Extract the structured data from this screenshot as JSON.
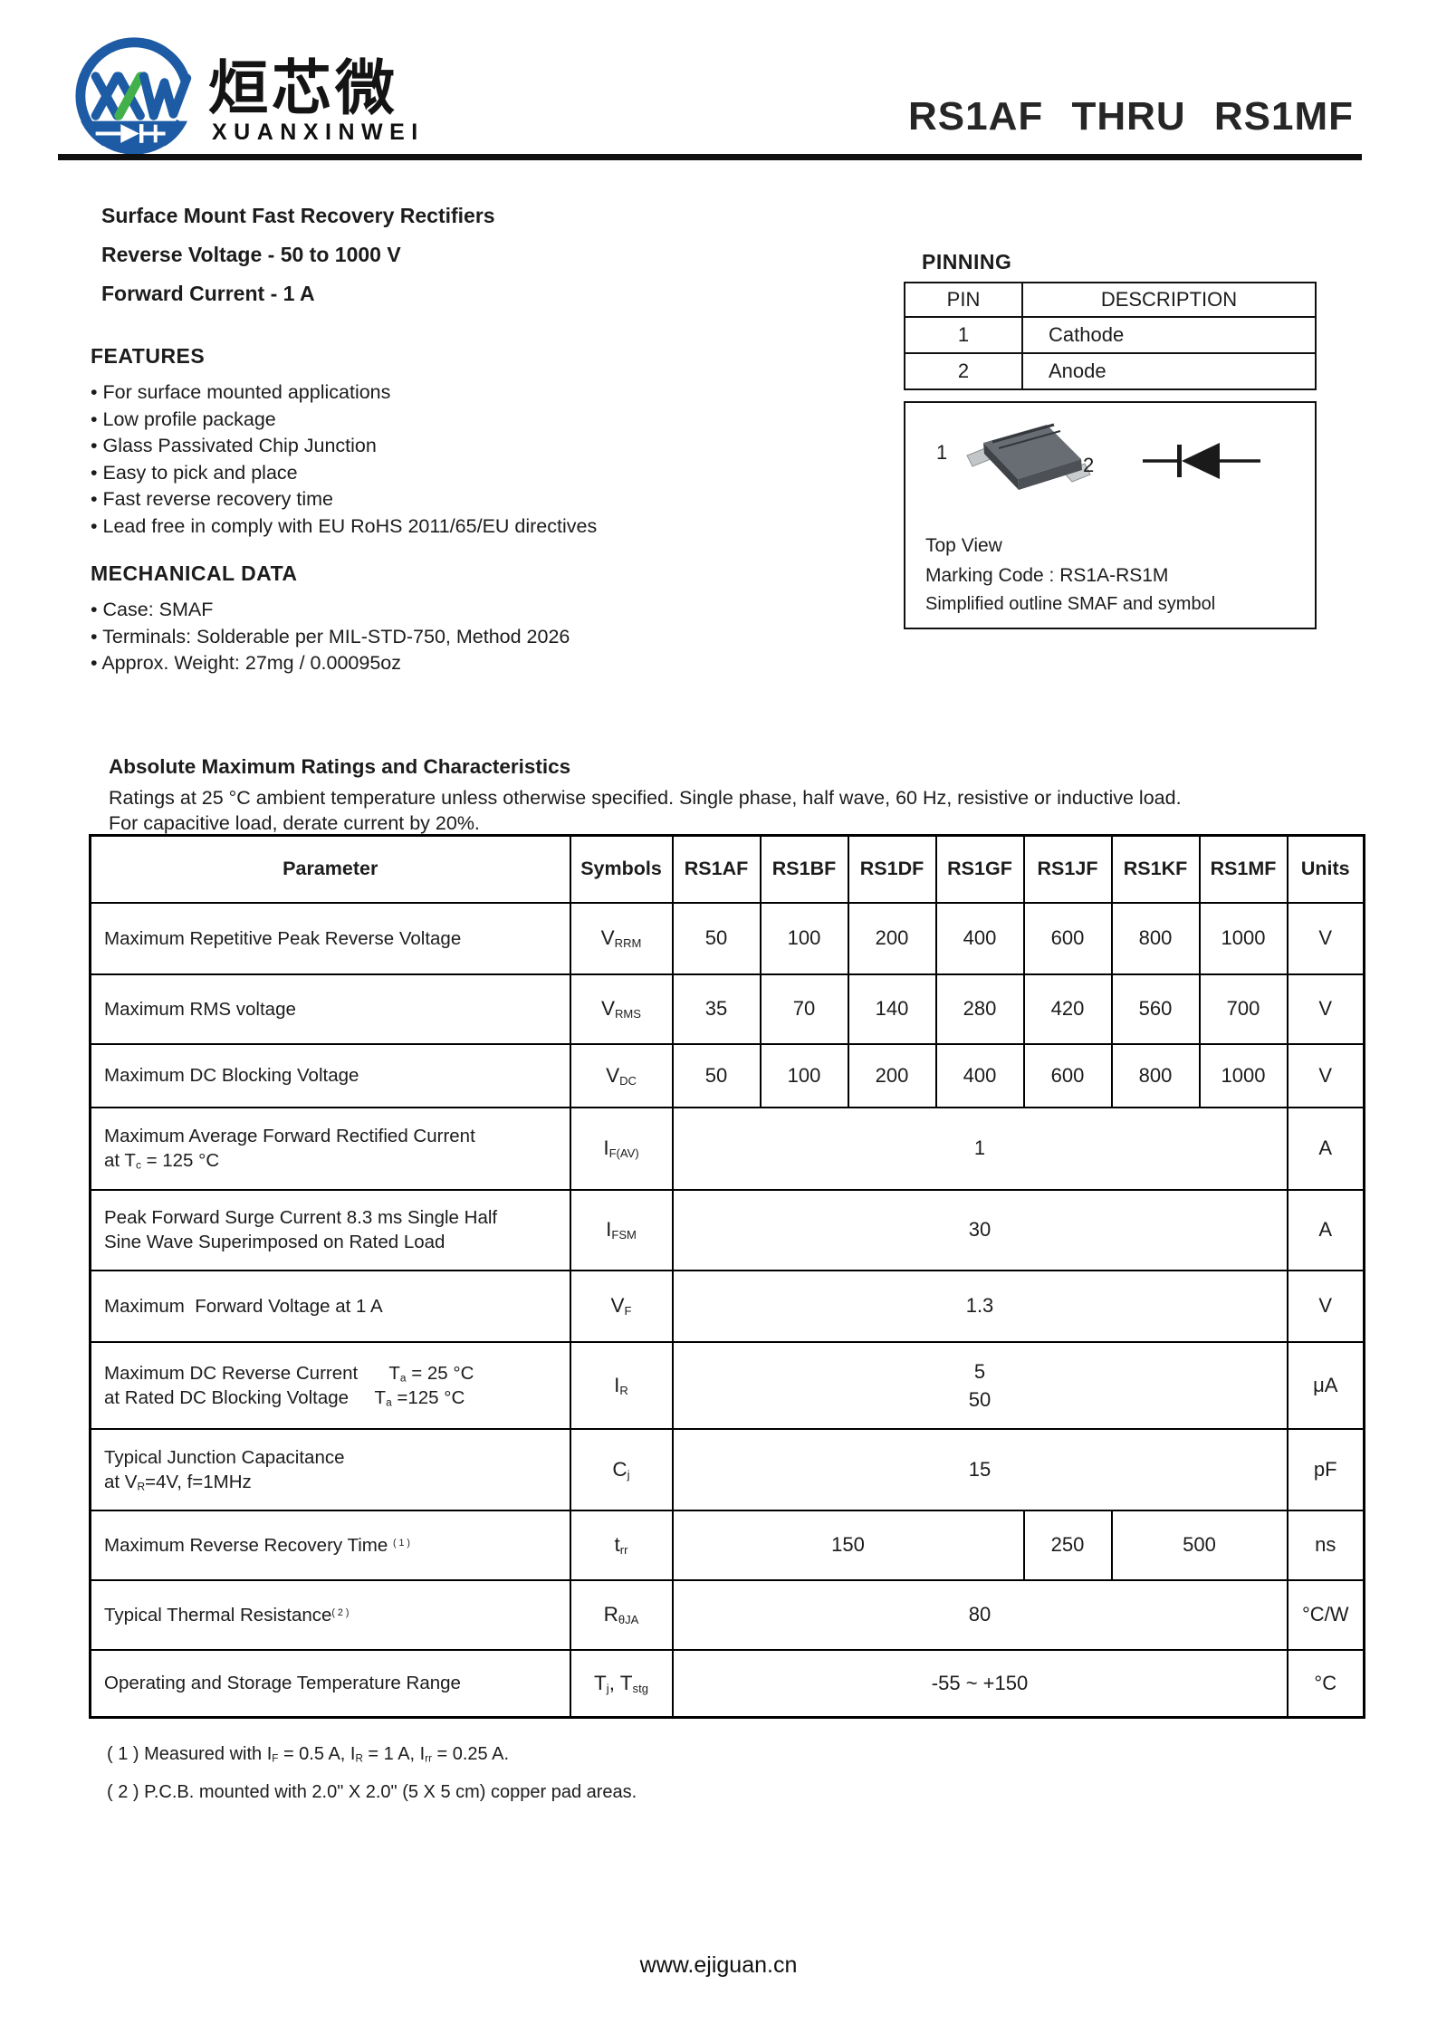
{
  "page": {
    "title": "RS1AF THRU RS1MF",
    "footer": "www.ejiguan.cn"
  },
  "logo": {
    "company_cn": "烜芯微",
    "company_en": "XUANXINWEI",
    "blue": "#1d5ba5",
    "green": "#43b14b"
  },
  "summary": {
    "line1": "Surface Mount Fast Recovery Rectifiers",
    "line2": "Reverse Voltage - 50 to 1000 V",
    "line3": "Forward Current - 1 A"
  },
  "features": {
    "heading": "FEATURES",
    "items": [
      "• For surface mounted applications",
      "• Low profile package",
      "• Glass Passivated Chip Junction",
      "• Easy to pick and place",
      "• Fast reverse recovery time",
      "• Lead free in comply with EU RoHS 2011/65/EU directives"
    ]
  },
  "mechanical": {
    "heading": "MECHANICAL DATA",
    "items": [
      "• Case: SMAF",
      "• Terminals: Solderable per MIL-STD-750, Method 2026",
      "• Approx. Weight:  27mg / 0.00095oz"
    ]
  },
  "pinning": {
    "heading": "PINNING",
    "headers": [
      "PIN",
      "DESCRIPTION"
    ],
    "rows": [
      [
        "1",
        "Cathode"
      ],
      [
        "2",
        "Anode"
      ]
    ]
  },
  "package_box": {
    "pin1": "1",
    "pin2": "2",
    "line1": "Top View",
    "line2": "Marking Code :  RS1A-RS1M",
    "line3": "Simplified outline SMAF and symbol"
  },
  "ratings": {
    "heading": "Absolute Maximum Ratings and Characteristics",
    "intro1": "Ratings at 25 °C ambient temperature unless otherwise specified. Single phase, half wave, 60 Hz, resistive or inductive load.",
    "intro2": "For capacitive load, derate current by 20%."
  },
  "table": {
    "headers": [
      "Parameter",
      "Symbols",
      "RS1AF",
      "RS1BF",
      "RS1DF",
      "RS1GF",
      "RS1JF",
      "RS1KF",
      "RS1MF",
      "Units"
    ],
    "rows": [
      {
        "parameter": [
          {
            "t": "Maximum Repetitive Peak Reverse Voltage"
          }
        ],
        "symbol": [
          {
            "t": "V"
          },
          {
            "sub": "RRM"
          }
        ],
        "values": [
          "50",
          "100",
          "200",
          "400",
          "600",
          "800",
          "1000"
        ],
        "unit": "V"
      },
      {
        "parameter": [
          {
            "t": "Maximum RMS voltage"
          }
        ],
        "symbol": [
          {
            "t": "V"
          },
          {
            "sub": "RMS"
          }
        ],
        "values": [
          "35",
          "70",
          "140",
          "280",
          "420",
          "560",
          "700"
        ],
        "unit": "V"
      },
      {
        "parameter": [
          {
            "t": "Maximum DC Blocking Voltage"
          }
        ],
        "symbol": [
          {
            "t": "V"
          },
          {
            "sub": "DC"
          }
        ],
        "values": [
          "50",
          "100",
          "200",
          "400",
          "600",
          "800",
          "1000"
        ],
        "unit": "V"
      },
      {
        "parameter": [
          {
            "t": "Maximum Average Forward Rectified Current"
          },
          {
            "br": true
          },
          {
            "t": "at T"
          },
          {
            "sub": "c"
          },
          {
            "t": " = 125 °C"
          }
        ],
        "symbol": [
          {
            "t": "I"
          },
          {
            "sub": "F(AV)"
          }
        ],
        "value": "1",
        "unit": "A"
      },
      {
        "parameter": [
          {
            "t": "Peak Forward Surge Current 8.3 ms Single Half"
          },
          {
            "br": true
          },
          {
            "t": "Sine Wave Superimposed on Rated Load"
          }
        ],
        "symbol": [
          {
            "t": "I"
          },
          {
            "sub": "FSM"
          }
        ],
        "value": "30",
        "unit": "A"
      },
      {
        "parameter": [
          {
            "t": "Maximum  Forward Voltage at 1 A"
          }
        ],
        "symbol": [
          {
            "t": "V"
          },
          {
            "sub": "F"
          }
        ],
        "value": "1.3",
        "unit": "V"
      },
      {
        "parameter": [
          {
            "t": "Maximum DC Reverse Current      T"
          },
          {
            "sub": "a"
          },
          {
            "t": " = 25 °C"
          },
          {
            "br": true
          },
          {
            "t": "at Rated DC Blocking Voltage     T"
          },
          {
            "sub": "a"
          },
          {
            "t": " =125 °C"
          }
        ],
        "symbol": [
          {
            "t": "I"
          },
          {
            "sub": "R"
          }
        ],
        "value_rich": [
          {
            "t": "5"
          },
          {
            "br": true
          },
          {
            "t": "50"
          }
        ],
        "unit": "μA"
      },
      {
        "parameter": [
          {
            "t": "Typical Junction Capacitance"
          },
          {
            "br": true
          },
          {
            "t": "at V"
          },
          {
            "sub": "R"
          },
          {
            "t": "=4V, f=1MHz"
          }
        ],
        "symbol": [
          {
            "t": "C"
          },
          {
            "sub": "j"
          }
        ],
        "value": "15",
        "unit": "pF"
      },
      {
        "parameter": [
          {
            "t": "Maximum Reverse Recovery Time "
          },
          {
            "sup": "( 1 )"
          }
        ],
        "symbol": [
          {
            "t": "t"
          },
          {
            "sub": "rr"
          }
        ],
        "values": [
          "150",
          "250",
          "500"
        ],
        "unit": "ns"
      },
      {
        "parameter": [
          {
            "t": "Typical Thermal Resistance"
          },
          {
            "sup": "( 2 )"
          }
        ],
        "symbol": [
          {
            "t": "R"
          },
          {
            "sub": "θJA"
          }
        ],
        "value": "80",
        "unit": "°C/W"
      },
      {
        "parameter": [
          {
            "t": "Operating and Storage Temperature Range"
          }
        ],
        "symbol": [
          {
            "t": "T"
          },
          {
            "sub": "j"
          },
          {
            "t": ", T"
          },
          {
            "sub": "stg"
          }
        ],
        "value": "-55 ~ +150",
        "unit": "°C"
      }
    ]
  },
  "notes": {
    "note1": [
      {
        "t": "( 1 ) Measured with I"
      },
      {
        "sub": "F"
      },
      {
        "t": " = 0.5 A, I"
      },
      {
        "sub": "R"
      },
      {
        "t": " = 1 A, I"
      },
      {
        "sub": "rr"
      },
      {
        "t": " = 0.25 A."
      }
    ],
    "note2": [
      {
        "t": "( 2 ) P.C.B. mounted with 2.0\" X 2.0\" (5 X 5 cm) copper pad areas."
      }
    ]
  }
}
